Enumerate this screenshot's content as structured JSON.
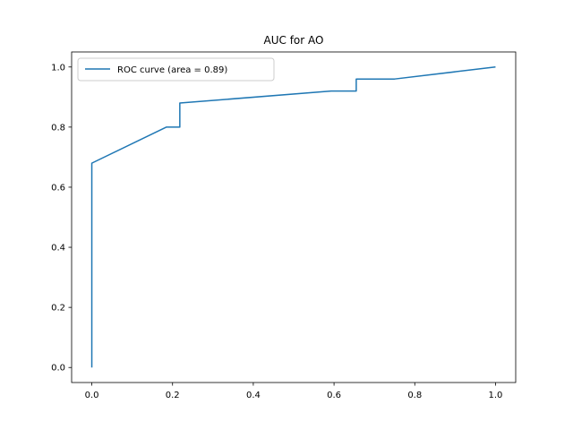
{
  "chart_data": {
    "type": "line",
    "title": "AUC for AO",
    "xlabel": "",
    "ylabel": "",
    "xlim": [
      -0.05,
      1.05
    ],
    "ylim": [
      -0.05,
      1.05
    ],
    "xticks": [
      0.0,
      0.2,
      0.4,
      0.6,
      0.8,
      1.0
    ],
    "yticks": [
      0.0,
      0.2,
      0.4,
      0.6,
      0.8,
      1.0
    ],
    "xtick_labels": [
      "0.0",
      "0.2",
      "0.4",
      "0.6",
      "0.8",
      "1.0"
    ],
    "ytick_labels": [
      "0.0",
      "0.2",
      "0.4",
      "0.6",
      "0.8",
      "1.0"
    ],
    "grid": false,
    "legend_position": "upper left",
    "series": [
      {
        "name": "ROC curve (area = 0.89)",
        "color": "#1f77b4",
        "x": [
          0.0,
          0.0,
          0.0,
          0.185,
          0.218,
          0.218,
          0.593,
          0.655,
          0.655,
          0.75,
          1.0
        ],
        "y": [
          0.0,
          0.68,
          0.68,
          0.8,
          0.8,
          0.88,
          0.92,
          0.92,
          0.96,
          0.96,
          1.0
        ]
      }
    ]
  }
}
